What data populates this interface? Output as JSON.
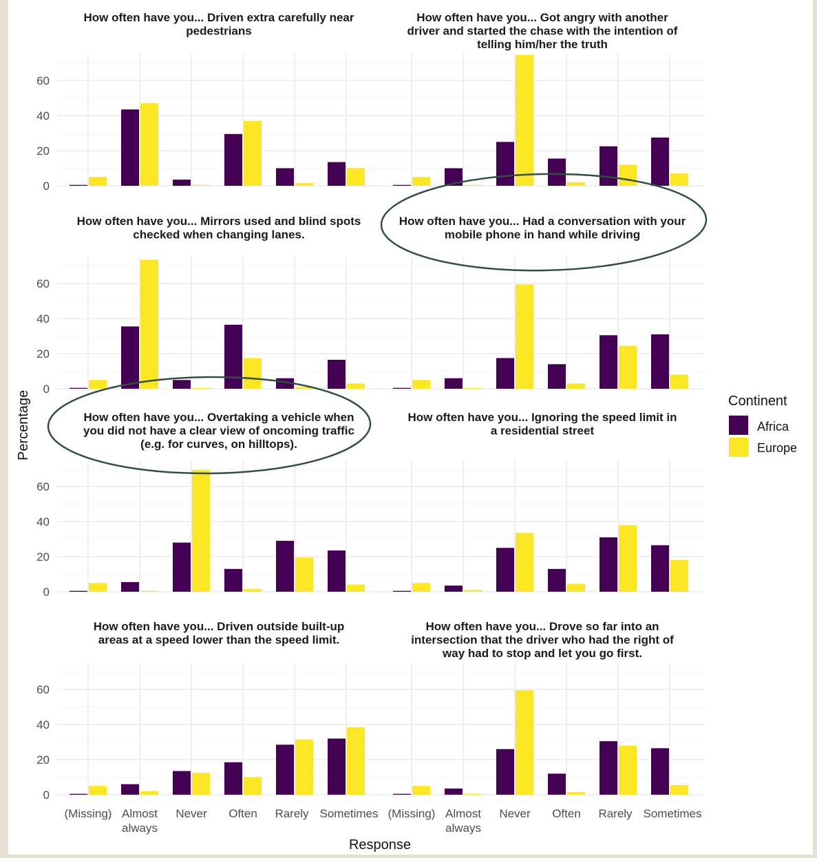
{
  "colors": {
    "Africa": "#440154",
    "Europe": "#fde725",
    "grid_major": "#ebebeb",
    "grid_minor": "#f5f5f5",
    "annotation": "#2f4f3f"
  },
  "axis": {
    "xlabel": "Response",
    "ylabel": "Percentage"
  },
  "legend": {
    "title": "Continent",
    "items": [
      "Africa",
      "Europe"
    ]
  },
  "chart_data": {
    "type": "bar",
    "layout": "facet grid 4 rows x 2 columns",
    "categories": [
      "(Missing)",
      "Almost always",
      "Never",
      "Often",
      "Rarely",
      "Sometimes"
    ],
    "ylim": [
      0,
      75
    ],
    "yticks": [
      0,
      20,
      40,
      60
    ],
    "legend_position": "right",
    "grid": true,
    "panels": [
      {
        "title_lines": [
          "How often have you... Driven extra carefully near",
          "pedestrians"
        ],
        "series": [
          {
            "name": "Africa",
            "values": [
              0.5,
              43.5,
              3.5,
              29.5,
              10,
              13.5
            ]
          },
          {
            "name": "Europe",
            "values": [
              5,
              47,
              0.5,
              37,
              1.5,
              10
            ]
          }
        ]
      },
      {
        "title_lines": [
          "How often have you... Got angry with another",
          "driver and started the chase with the intention of",
          "telling him/her the truth"
        ],
        "series": [
          {
            "name": "Africa",
            "values": [
              0.5,
              10,
              25,
              15.5,
              22.5,
              27.5
            ]
          },
          {
            "name": "Europe",
            "values": [
              5,
              0.5,
              74.5,
              2,
              12,
              7
            ]
          }
        ]
      },
      {
        "title_lines": [
          "How often have you... Mirrors used and blind spots",
          "checked when changing lanes."
        ],
        "series": [
          {
            "name": "Africa",
            "values": [
              0.5,
              35.5,
              5,
              36.5,
              6,
              16.5
            ]
          },
          {
            "name": "Europe",
            "values": [
              5,
              73.5,
              0.5,
              17.5,
              1,
              3
            ]
          }
        ]
      },
      {
        "title_lines": [
          "How often have you... Had a conversation with your",
          "mobile phone in hand while driving"
        ],
        "annotated": true,
        "series": [
          {
            "name": "Africa",
            "values": [
              0.5,
              6,
              17.5,
              14,
              30.5,
              31
            ]
          },
          {
            "name": "Europe",
            "values": [
              5,
              0.5,
              59.5,
              3,
              24.5,
              8
            ]
          }
        ]
      },
      {
        "title_lines": [
          "How often have you... Overtaking a vehicle when",
          "you did not have a clear view of oncoming traffic",
          "(e.g. for curves, on hilltops)."
        ],
        "annotated": true,
        "series": [
          {
            "name": "Africa",
            "values": [
              0.5,
              5.5,
              28,
              13,
              29,
              23.5
            ]
          },
          {
            "name": "Europe",
            "values": [
              5,
              0.5,
              69.5,
              1.5,
              19.5,
              4
            ]
          }
        ]
      },
      {
        "title_lines": [
          "How often have you... Ignoring the speed limit in",
          "a residential street"
        ],
        "series": [
          {
            "name": "Africa",
            "values": [
              0.5,
              3.5,
              25,
              13,
              31,
              26.5
            ]
          },
          {
            "name": "Europe",
            "values": [
              5,
              1,
              33.5,
              4.5,
              38,
              18
            ]
          }
        ]
      },
      {
        "title_lines": [
          "How often have you... Driven outside built-up",
          "areas at a speed lower than the speed limit."
        ],
        "series": [
          {
            "name": "Africa",
            "values": [
              0.5,
              6,
              13.5,
              18.5,
              28.5,
              32
            ]
          },
          {
            "name": "Europe",
            "values": [
              5,
              2,
              12.5,
              10,
              31.5,
              38.5
            ]
          }
        ]
      },
      {
        "title_lines": [
          "How often have you... Drove so far into an",
          "intersection that the driver who had the right of",
          "way had to stop and let you go first."
        ],
        "series": [
          {
            "name": "Africa",
            "values": [
              0.5,
              3.5,
              26,
              12,
              30.5,
              26.5
            ]
          },
          {
            "name": "Europe",
            "values": [
              5,
              0.5,
              59.5,
              1.5,
              28,
              5.5
            ]
          }
        ]
      }
    ]
  }
}
